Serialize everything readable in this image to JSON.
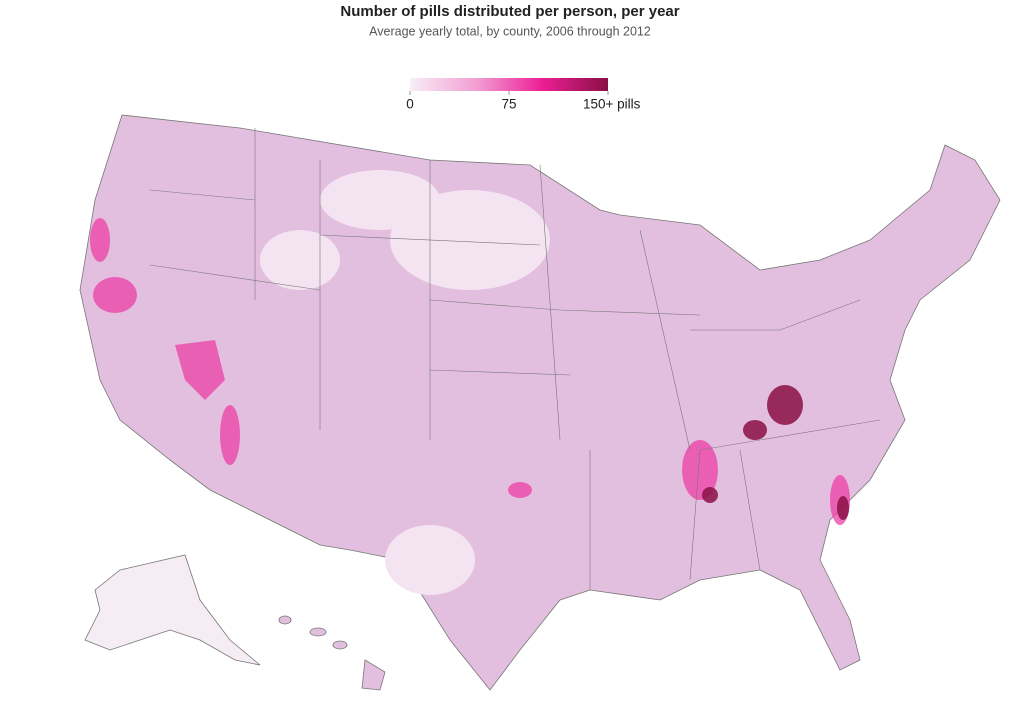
{
  "header": {
    "title": "Number of pills distributed per person, per year",
    "subtitle": "Average yearly total, by county, 2006 through 2012"
  },
  "legend": {
    "lim": [
      0,
      150
    ],
    "ticks": [
      0,
      75,
      {
        "value": 150,
        "label": "150+ pills"
      }
    ],
    "colors": [
      "#f7eef6",
      "#f29fd4",
      "#ec1f95",
      "#8a1045"
    ]
  }
}
